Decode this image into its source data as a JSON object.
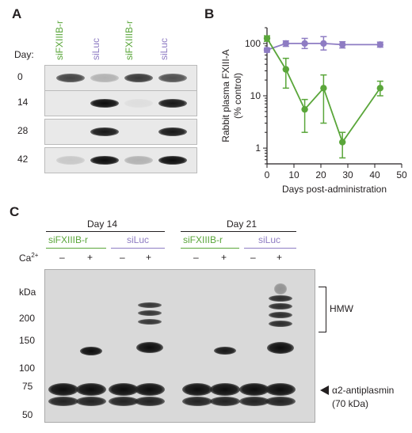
{
  "panel_a": {
    "letter": "A",
    "day_label": "Day:",
    "lanes": [
      {
        "label": "siFXIIIB-r",
        "color": "#5aa63a"
      },
      {
        "label": "siLuc",
        "color": "#8e7cc3"
      },
      {
        "label": "siFXIIIB-r",
        "color": "#5aa63a"
      },
      {
        "label": "siLuc",
        "color": "#8e7cc3"
      }
    ],
    "rows": [
      {
        "day": "0",
        "bands": [
          0.75,
          0.25,
          0.8,
          0.7
        ]
      },
      {
        "day": "14",
        "bands": [
          0,
          1.0,
          0.05,
          0.95
        ]
      },
      {
        "day": "28",
        "bands": [
          0,
          0.95,
          0,
          0.95
        ]
      },
      {
        "day": "42",
        "bands": [
          0.15,
          1.0,
          0.25,
          1.0
        ]
      }
    ]
  },
  "panel_b": {
    "letter": "B",
    "chart_data": {
      "type": "line",
      "ylabel_line1": "Rabbit plasma FXIII-A",
      "ylabel_line2": "(% control)",
      "xlabel": "Days post-administration",
      "y_scale": "log",
      "ylim": [
        0.5,
        200
      ],
      "xlim": [
        0,
        50
      ],
      "x_ticks": [
        "0",
        "10",
        "20",
        "30",
        "40",
        "50"
      ],
      "y_ticks": [
        "1",
        "10",
        "100"
      ],
      "series": [
        {
          "color": "#8e7cc3",
          "x": [
            0,
            7,
            14,
            21,
            28,
            42
          ],
          "y": [
            75,
            100,
            100,
            100,
            95,
            95
          ],
          "err_lo": [
            68,
            88,
            80,
            75,
            82,
            85
          ],
          "err_hi": [
            82,
            112,
            125,
            135,
            108,
            106
          ]
        },
        {
          "color": "#5aa63a",
          "x": [
            0,
            7,
            14,
            21,
            28,
            42
          ],
          "y": [
            125,
            32,
            5.5,
            14,
            1.3,
            14
          ],
          "err_lo": [
            110,
            14,
            2.0,
            3.0,
            0.65,
            10
          ],
          "err_hi": [
            140,
            52,
            8.5,
            25,
            2.0,
            19
          ]
        }
      ]
    }
  },
  "panel_c": {
    "letter": "C",
    "groups": [
      {
        "label": "Day 14"
      },
      {
        "label": "Day 21"
      }
    ],
    "subgroups": [
      {
        "label": "siFXIIIB-r",
        "color": "#5aa63a"
      },
      {
        "label": "siLuc",
        "color": "#8e7cc3"
      },
      {
        "label": "siFXIIIB-r",
        "color": "#5aa63a"
      },
      {
        "label": "siLuc",
        "color": "#8e7cc3"
      }
    ],
    "ca_label": "Ca",
    "ca_sup": "2+",
    "ca_signs": [
      "–",
      "+",
      "–",
      "+",
      "–",
      "+",
      "–",
      "+"
    ],
    "kda_label": "kDa",
    "markers": [
      "200",
      "150",
      "100",
      "75",
      "50"
    ],
    "hmw_label": "HMW",
    "antiplasmin_label": "α2-antiplasmin",
    "antiplasmin_kda": "(70 kDa)"
  }
}
